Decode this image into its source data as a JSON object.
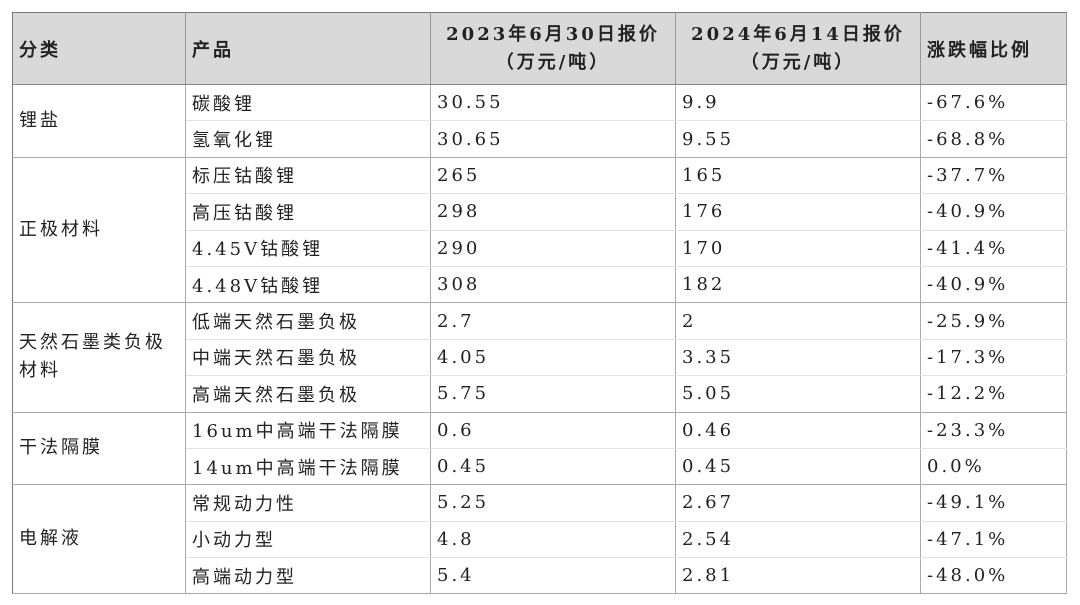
{
  "table": {
    "headers": [
      "分类",
      "产品",
      [
        "2023年6月30日报价",
        "（万元/吨）"
      ],
      [
        "2024年6月14日报价",
        "（万元/吨）"
      ],
      "涨跌幅比例"
    ],
    "groups": [
      {
        "category": "锂盐",
        "rows": [
          [
            "碳酸锂",
            "30.55",
            "9.9",
            "-67.6%"
          ],
          [
            "氢氧化锂",
            "30.65",
            "9.55",
            "-68.8%"
          ]
        ]
      },
      {
        "category": "正极材料",
        "rows": [
          [
            "标压钴酸锂",
            "265",
            "165",
            "-37.7%"
          ],
          [
            "高压钴酸锂",
            "298",
            "176",
            "-40.9%"
          ],
          [
            "4.45V钴酸锂",
            "290",
            "170",
            "-41.4%"
          ],
          [
            "4.48V钴酸锂",
            "308",
            "182",
            "-40.9%"
          ]
        ]
      },
      {
        "category": "天然石墨类负极材料",
        "rows": [
          [
            "低端天然石墨负极",
            "2.7",
            "2",
            "-25.9%"
          ],
          [
            "中端天然石墨负极",
            "4.05",
            "3.35",
            "-17.3%"
          ],
          [
            "高端天然石墨负极",
            "5.75",
            "5.05",
            "-12.2%"
          ]
        ]
      },
      {
        "category": "干法隔膜",
        "rows": [
          [
            "16um中高端干法隔膜",
            "0.6",
            "0.46",
            "-23.3%"
          ],
          [
            "14um中高端干法隔膜",
            "0.45",
            "0.45",
            "0.0%"
          ]
        ]
      },
      {
        "category": "电解液",
        "rows": [
          [
            "常规动力性",
            "5.25",
            "2.67",
            "-49.1%"
          ],
          [
            "小动力型",
            "4.8",
            "2.54",
            "-47.1%"
          ],
          [
            "高端动力型",
            "5.4",
            "2.81",
            "-48.0%"
          ]
        ]
      }
    ]
  }
}
